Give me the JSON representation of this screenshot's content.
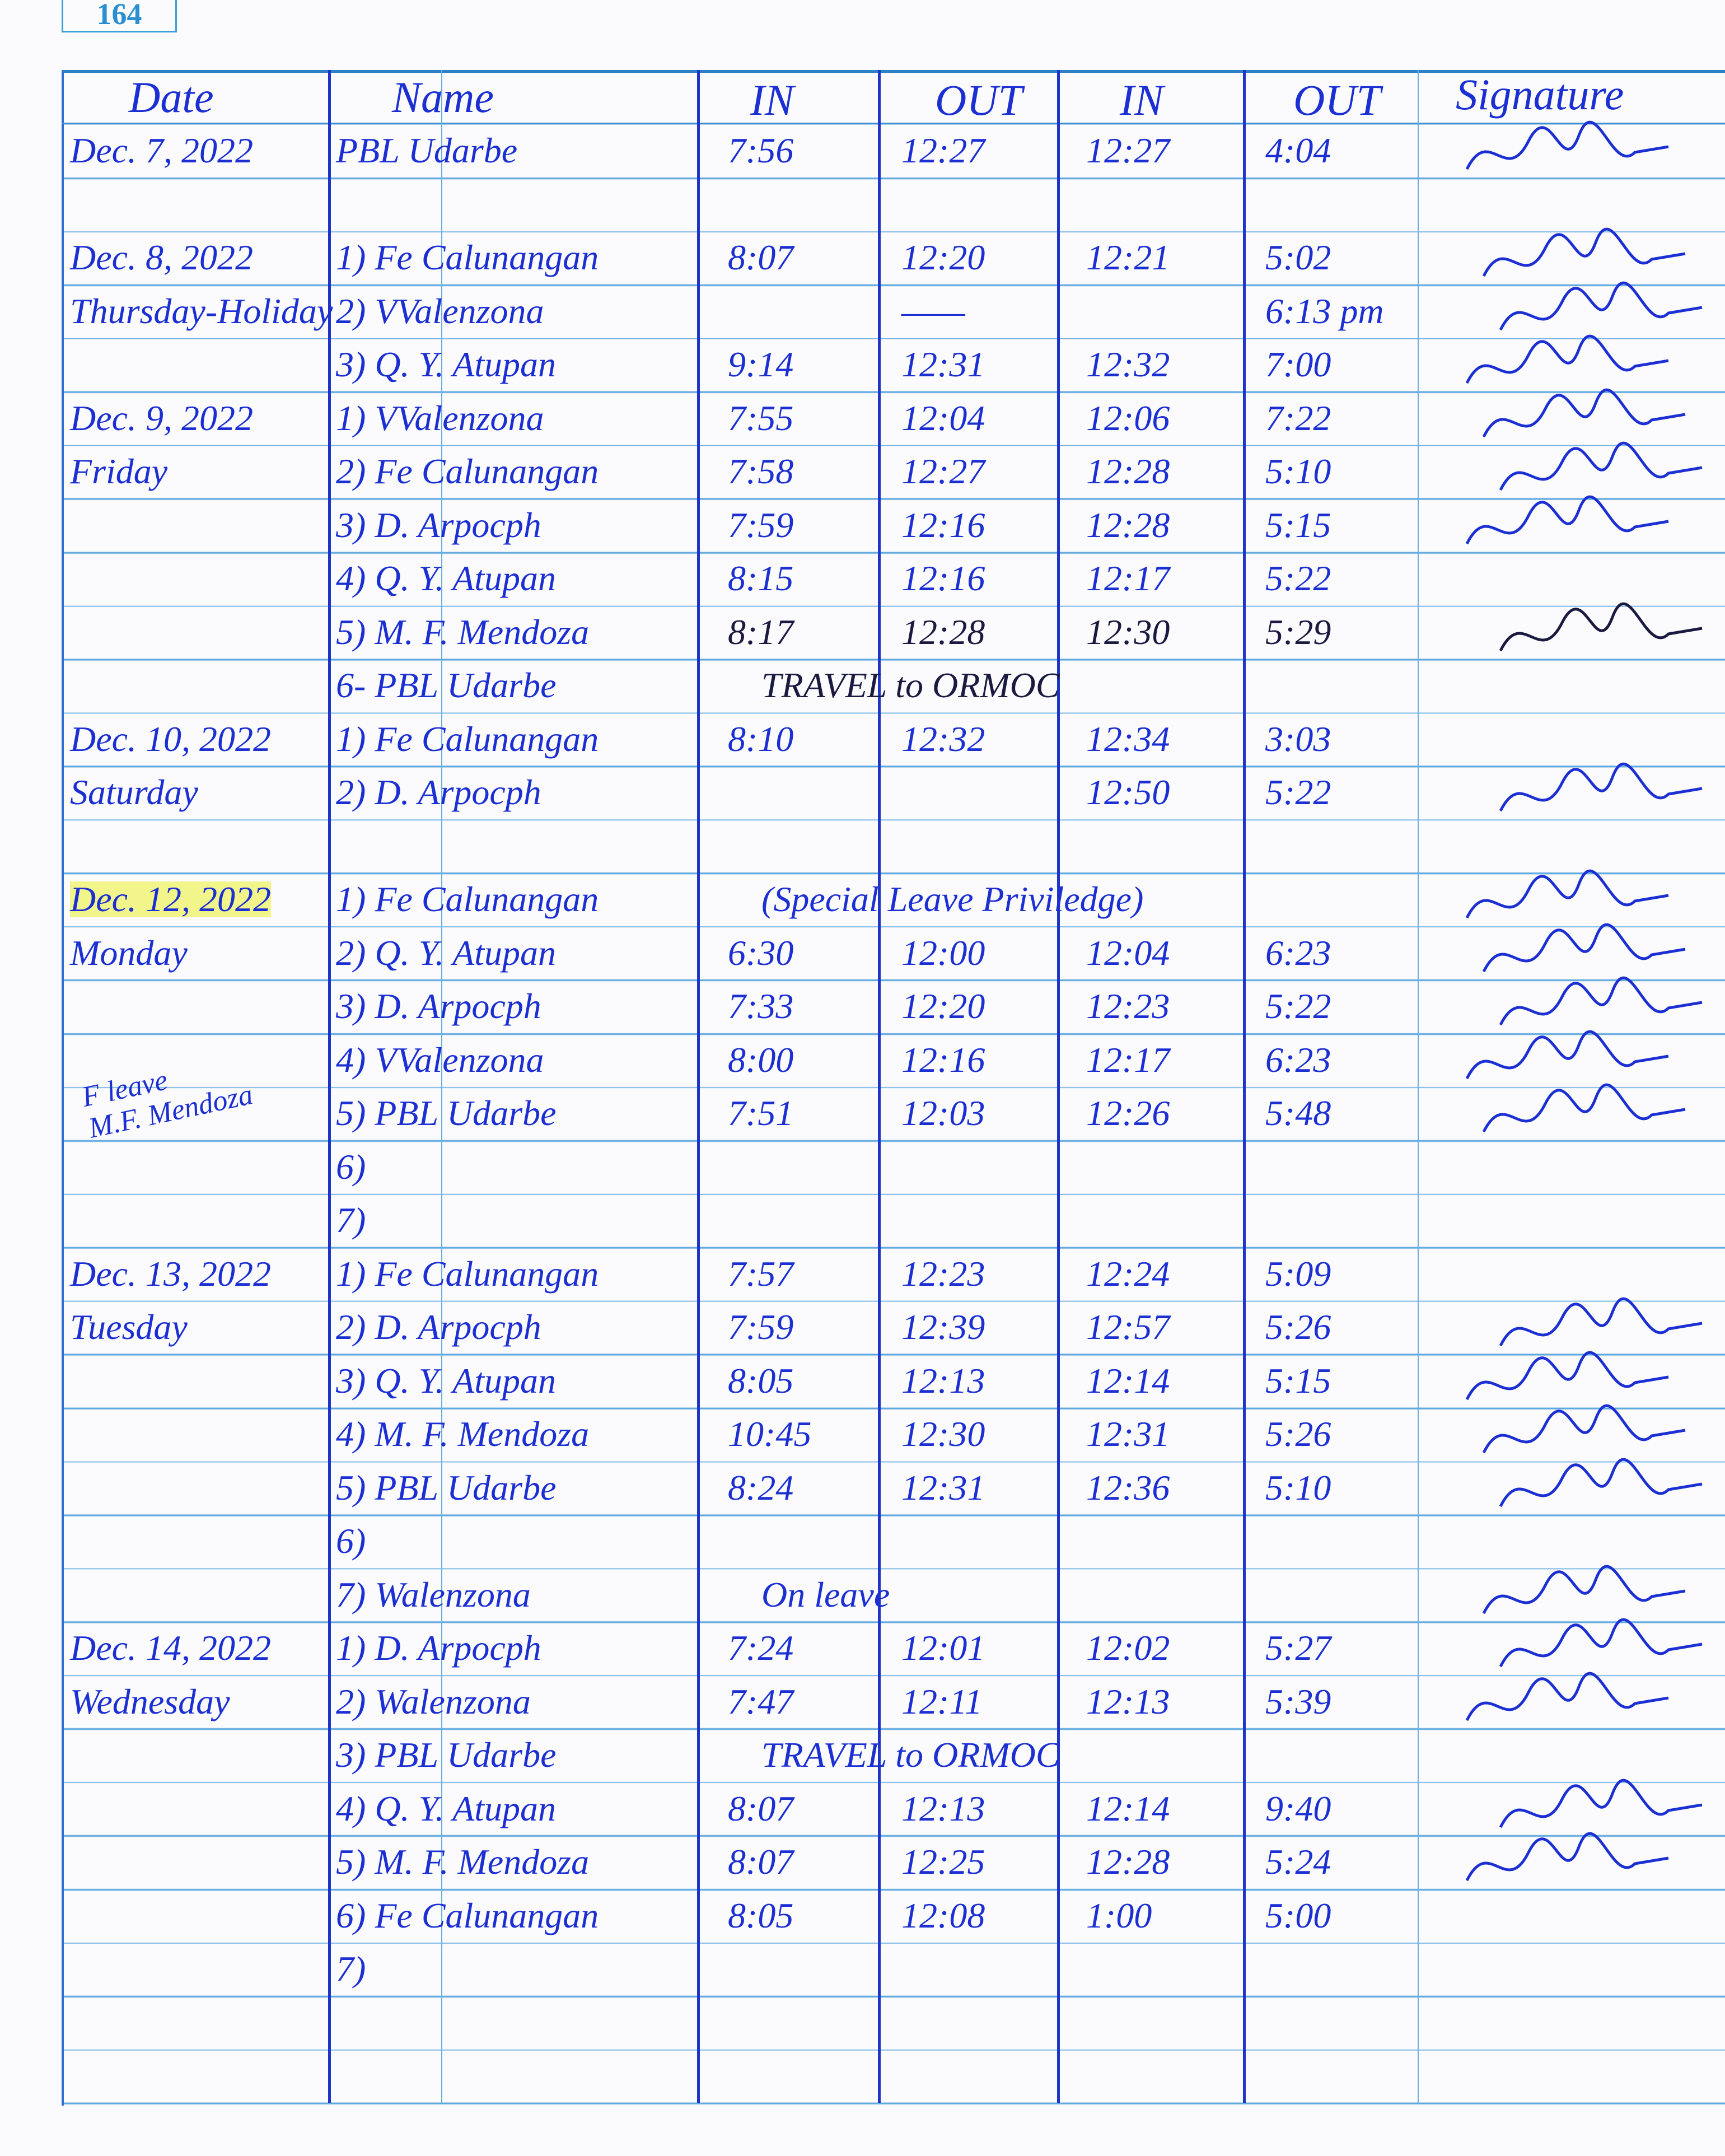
{
  "page_number": "164",
  "header": {
    "date": "Date",
    "name": "Name",
    "in1": "IN",
    "out1": "OUT",
    "in2": "IN",
    "out2": "OUT",
    "signature": "Signature"
  },
  "colors": {
    "ink": "#1b2fd3",
    "rule": "#5ea8de",
    "column_rule": "#1f34c8",
    "highlight": "#f2f58a"
  },
  "side_note": {
    "line1": "F leave",
    "line2": "M.F. Mendoza"
  },
  "rows": [
    {
      "row": 1,
      "date": "Dec. 7, 2022",
      "name": "PBL Udarbe",
      "in1": "7:56",
      "out1": "12:27",
      "in2": "12:27",
      "out2": "4:04",
      "sig": true
    },
    {
      "row": 3,
      "date": "Dec. 8, 2022",
      "name": "1) Fe Calunangan",
      "in1": "8:07",
      "out1": "12:20",
      "in2": "12:21",
      "out2": "5:02",
      "sig": true
    },
    {
      "row": 4,
      "date": "Thursday-Holiday",
      "name": "2) VValenzona",
      "out1": "——",
      "out2": "6:13 pm",
      "sig": true
    },
    {
      "row": 5,
      "name": "3) Q. Y. Atupan",
      "in1": "9:14",
      "out1": "12:31",
      "in2": "12:32",
      "out2": "7:00",
      "sig": true
    },
    {
      "row": 6,
      "date": "Dec. 9, 2022",
      "name": "1) VValenzona",
      "in1": "7:55",
      "out1": "12:04",
      "in2": "12:06",
      "out2": "7:22",
      "sig": true
    },
    {
      "row": 7,
      "date": "Friday",
      "name": "2) Fe Calunangan",
      "in1": "7:58",
      "out1": "12:27",
      "in2": "12:28",
      "out2": "5:10",
      "sig": true
    },
    {
      "row": 8,
      "name": "3) D. Arpocph",
      "in1": "7:59",
      "out1": "12:16",
      "in2": "12:28",
      "out2": "5:15",
      "sig": true
    },
    {
      "row": 9,
      "name": "4) Q. Y. Atupan",
      "in1": "8:15",
      "out1": "12:16",
      "in2": "12:17",
      "out2": "5:22"
    },
    {
      "row": 10,
      "name": "5) M. F. Mendoza",
      "in1": "8:17",
      "out1": "12:28",
      "in2": "12:30",
      "out2": "5:29",
      "sig": true,
      "black": true
    },
    {
      "row": 11,
      "name": "6- PBL Udarbe",
      "span": "TRAVEL to ORMOC",
      "black": true
    },
    {
      "row": 12,
      "date": "Dec. 10, 2022",
      "name": "1) Fe Calunangan",
      "in1": "8:10",
      "out1": "12:32",
      "in2": "12:34",
      "out2": "3:03"
    },
    {
      "row": 13,
      "date": "Saturday",
      "name": "2) D. Arpocph",
      "in2": "12:50",
      "out2": "5:22",
      "sig": true
    },
    {
      "row": 15,
      "date": "Dec. 12, 2022",
      "highlight": true,
      "name": "1) Fe Calunangan",
      "span": "(Special Leave Priviledge)",
      "sig": true
    },
    {
      "row": 16,
      "date": "Monday",
      "name": "2) Q. Y. Atupan",
      "in1": "6:30",
      "out1": "12:00",
      "in2": "12:04",
      "out2": "6:23",
      "sig": true
    },
    {
      "row": 17,
      "name": "3) D. Arpocph",
      "in1": "7:33",
      "out1": "12:20",
      "in2": "12:23",
      "out2": "5:22",
      "sig": true
    },
    {
      "row": 18,
      "name": "4) VValenzona",
      "in1": "8:00",
      "out1": "12:16",
      "in2": "12:17",
      "out2": "6:23",
      "sig": true
    },
    {
      "row": 19,
      "name": "5) PBL Udarbe",
      "in1": "7:51",
      "out1": "12:03",
      "in2": "12:26",
      "out2": "5:48",
      "sig": true
    },
    {
      "row": 20,
      "name": "6)"
    },
    {
      "row": 21,
      "name": "7)"
    },
    {
      "row": 22,
      "date": "Dec. 13, 2022",
      "name": "1) Fe Calunangan",
      "in1": "7:57",
      "out1": "12:23",
      "in2": "12:24",
      "out2": "5:09"
    },
    {
      "row": 23,
      "date": "Tuesday",
      "name": "2) D. Arpocph",
      "in1": "7:59",
      "out1": "12:39",
      "in2": "12:57",
      "out2": "5:26",
      "sig": true
    },
    {
      "row": 24,
      "name": "3) Q. Y. Atupan",
      "in1": "8:05",
      "out1": "12:13",
      "in2": "12:14",
      "out2": "5:15",
      "sig": true
    },
    {
      "row": 25,
      "name": "4) M. F. Mendoza",
      "in1": "10:45",
      "out1": "12:30",
      "in2": "12:31",
      "out2": "5:26",
      "sig": true
    },
    {
      "row": 26,
      "name": "5) PBL Udarbe",
      "in1": "8:24",
      "out1": "12:31",
      "in2": "12:36",
      "out2": "5:10",
      "sig": true
    },
    {
      "row": 27,
      "name": "6)"
    },
    {
      "row": 28,
      "name": "7) Walenzona",
      "span": "On leave",
      "sig": true
    },
    {
      "row": 29,
      "date": "Dec. 14, 2022",
      "name": "1) D. Arpocph",
      "in1": "7:24",
      "out1": "12:01",
      "in2": "12:02",
      "out2": "5:27",
      "sig": true
    },
    {
      "row": 30,
      "date": "Wednesday",
      "name": "2) Walenzona",
      "in1": "7:47",
      "out1": "12:11",
      "in2": "12:13",
      "out2": "5:39",
      "sig": true
    },
    {
      "row": 31,
      "name": "3) PBL Udarbe",
      "span": "TRAVEL to ORMOC"
    },
    {
      "row": 32,
      "name": "4) Q. Y. Atupan",
      "in1": "8:07",
      "out1": "12:13",
      "in2": "12:14",
      "out2": "9:40",
      "sig": true
    },
    {
      "row": 33,
      "name": "5) M. F. Mendoza",
      "in1": "8:07",
      "out1": "12:25",
      "in2": "12:28",
      "out2": "5:24",
      "sig": true
    },
    {
      "row": 34,
      "name": "6) Fe Calunangan",
      "in1": "8:05",
      "out1": "12:08",
      "in2": "1:00",
      "out2": "5:00"
    },
    {
      "row": 35,
      "name": "7)"
    }
  ]
}
